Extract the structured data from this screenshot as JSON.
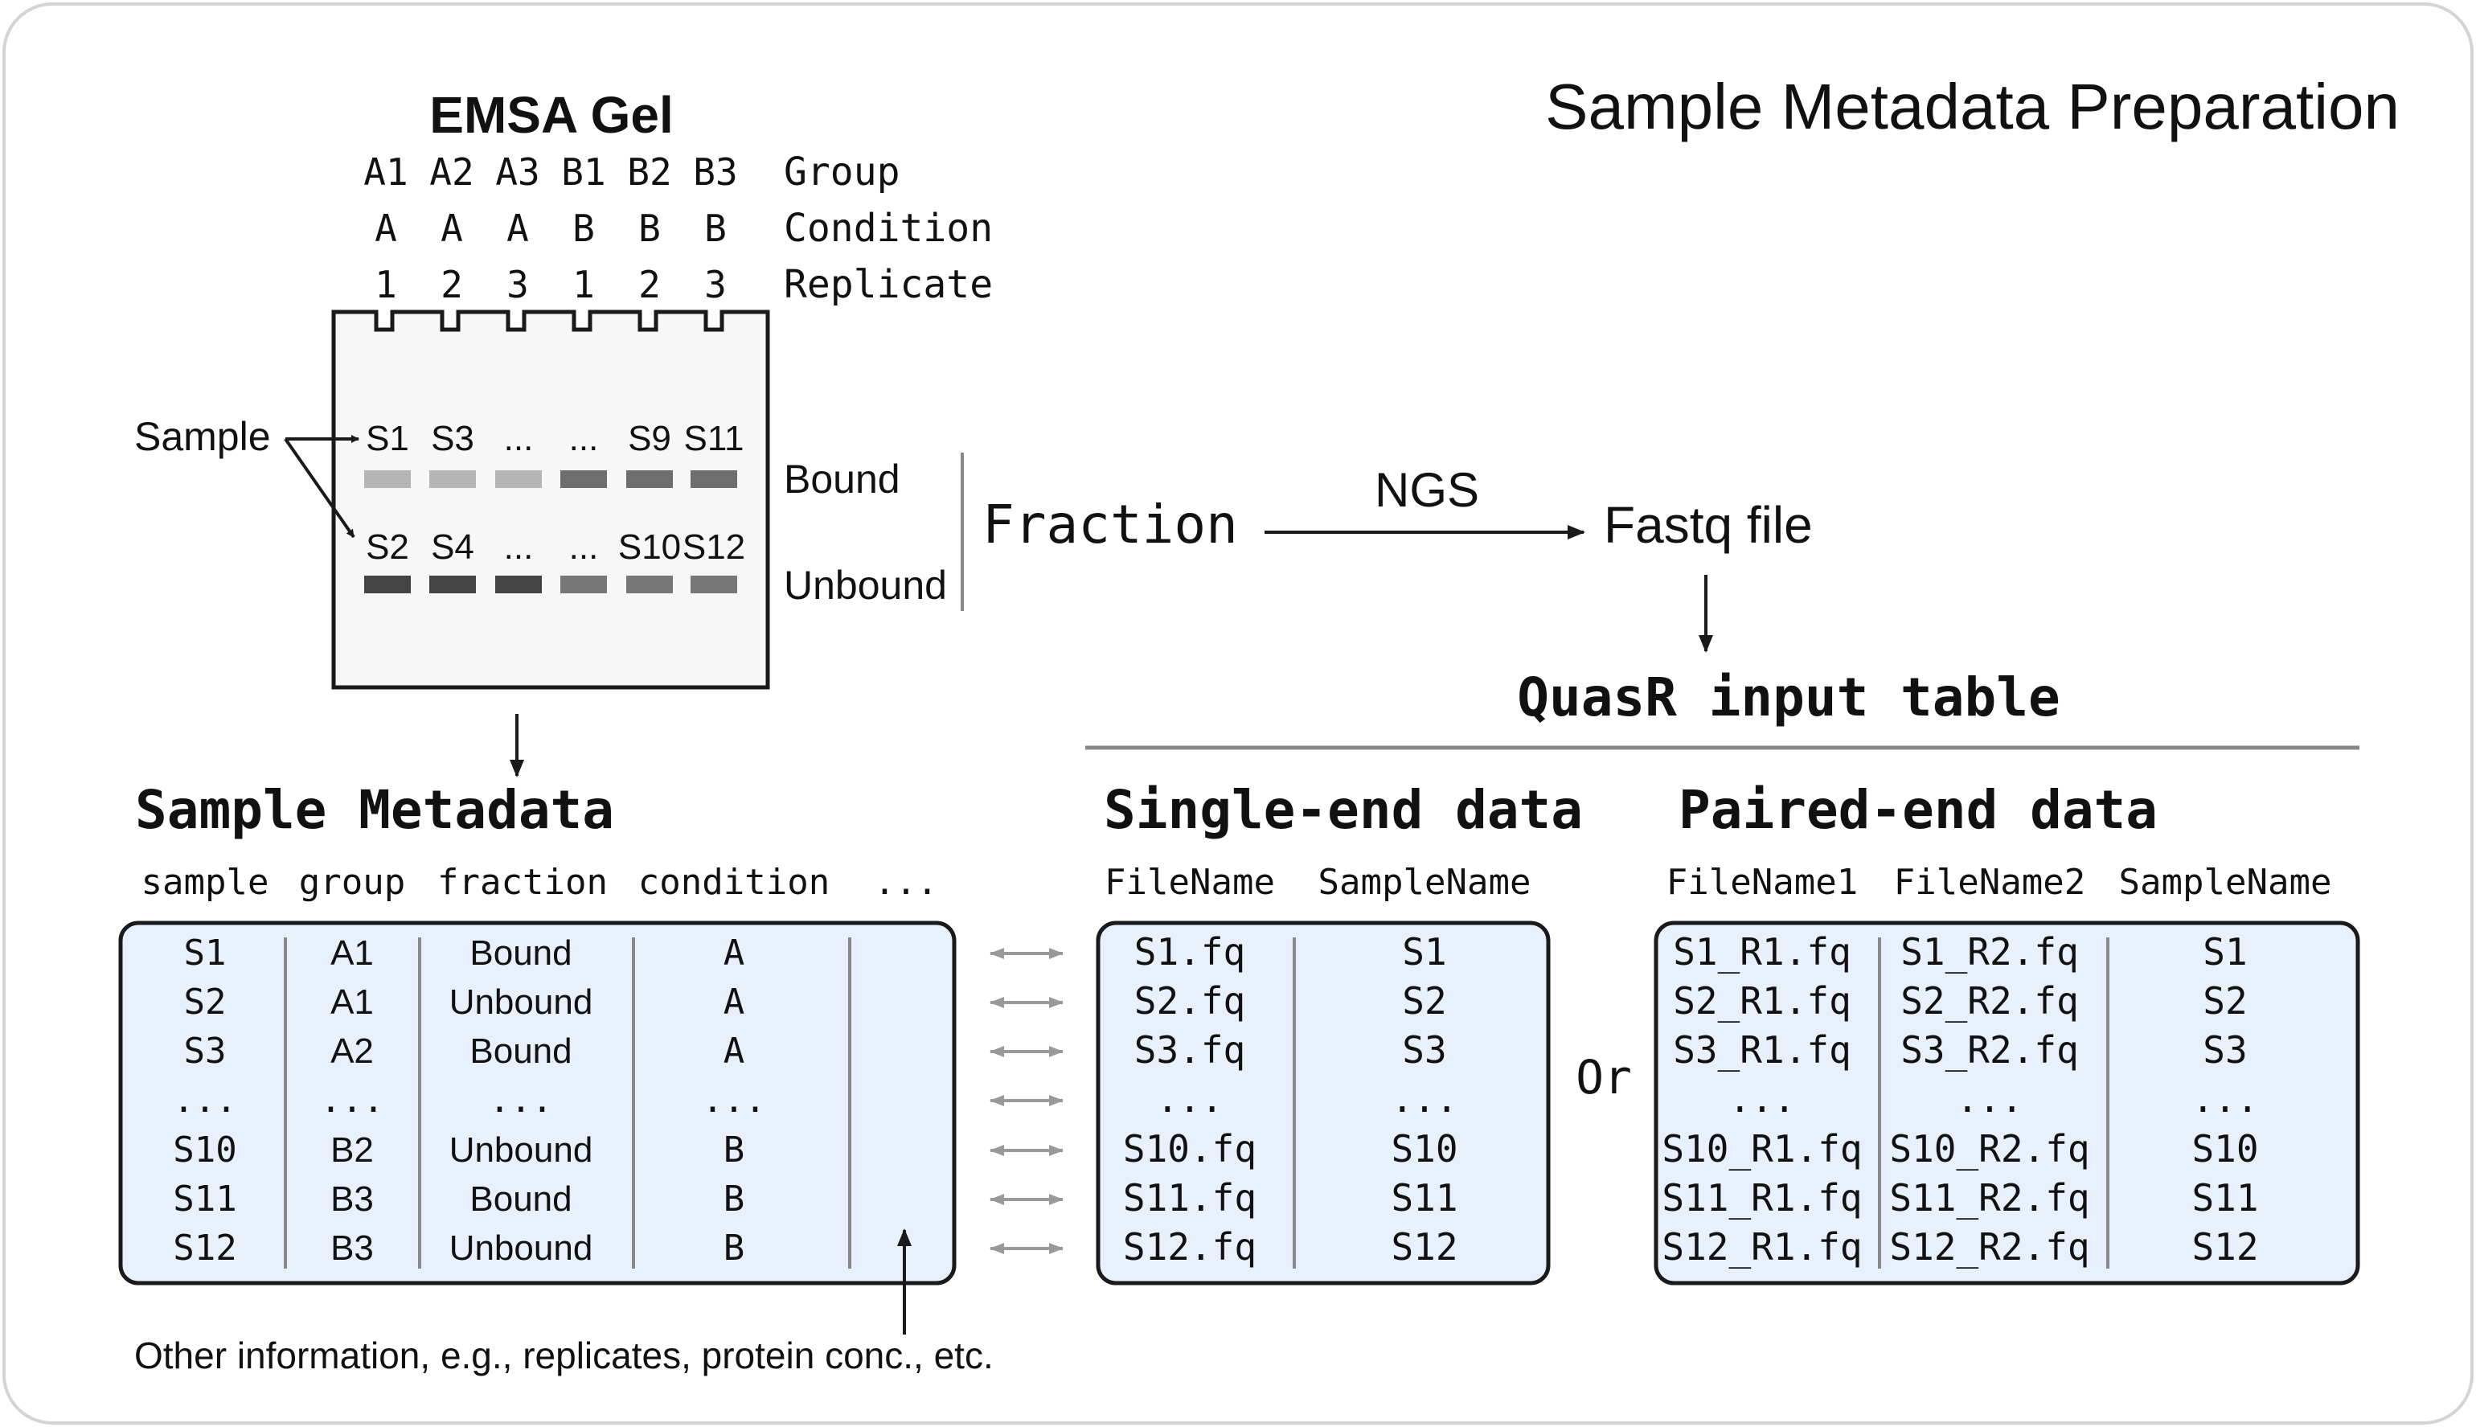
{
  "title": "Sample Metadata Preparation",
  "gel": {
    "title": "EMSA Gel",
    "lane_rows": [
      {
        "label": "Group",
        "values": [
          "A1",
          "A2",
          "A3",
          "B1",
          "B2",
          "B3"
        ]
      },
      {
        "label": "Condition",
        "values": [
          "A",
          "A",
          "A",
          "B",
          "B",
          "B"
        ]
      },
      {
        "label": "Replicate",
        "values": [
          "1",
          "2",
          "3",
          "1",
          "2",
          "3"
        ]
      }
    ],
    "sample_label": "Sample",
    "bound": {
      "label": "Bound",
      "samples": [
        "S1",
        "S3",
        "...",
        "...",
        "S9",
        "S11"
      ],
      "band_colors": [
        "#b5b5b5",
        "#b5b5b5",
        "#b5b5b5",
        "#6e6e6e",
        "#6e6e6e",
        "#6e6e6e"
      ]
    },
    "unbound": {
      "label": "Unbound",
      "samples": [
        "S2",
        "S4",
        "...",
        "...",
        "S10",
        "S12"
      ],
      "band_colors": [
        "#444444",
        "#444444",
        "#444444",
        "#777777",
        "#777777",
        "#777777"
      ]
    }
  },
  "flow": {
    "fraction": "Fraction",
    "ngs": "NGS",
    "fastq": "Fastq file",
    "quasr_title": "QuasR input table"
  },
  "metadata": {
    "title": "Sample Metadata",
    "headers": [
      "sample",
      "group",
      "fraction",
      "condition",
      "..."
    ],
    "rows": [
      [
        "S1",
        "A1",
        "Bound",
        "A",
        ""
      ],
      [
        "S2",
        "A1",
        "Unbound",
        "A",
        ""
      ],
      [
        "S3",
        "A2",
        "Bound",
        "A",
        ""
      ],
      [
        "...",
        "...",
        "...",
        "...",
        ""
      ],
      [
        "S10",
        "B2",
        "Unbound",
        "B",
        ""
      ],
      [
        "S11",
        "B3",
        "Bound",
        "B",
        ""
      ],
      [
        "S12",
        "B3",
        "Unbound",
        "B",
        ""
      ]
    ],
    "note": "Other information, e.g., replicates, protein conc., etc."
  },
  "single_end": {
    "title": "Single-end data",
    "headers": [
      "FileName",
      "SampleName"
    ],
    "rows": [
      [
        "S1.fq",
        "S1"
      ],
      [
        "S2.fq",
        "S2"
      ],
      [
        "S3.fq",
        "S3"
      ],
      [
        "...",
        "..."
      ],
      [
        "S10.fq",
        "S10"
      ],
      [
        "S11.fq",
        "S11"
      ],
      [
        "S12.fq",
        "S12"
      ]
    ]
  },
  "or_label": "Or",
  "paired_end": {
    "title": "Paired-end data",
    "headers": [
      "FileName1",
      "FileName2",
      "SampleName"
    ],
    "rows": [
      [
        "S1_R1.fq",
        "S1_R2.fq",
        "S1"
      ],
      [
        "S2_R1.fq",
        "S2_R2.fq",
        "S2"
      ],
      [
        "S3_R1.fq",
        "S3_R2.fq",
        "S3"
      ],
      [
        "...",
        "...",
        "..."
      ],
      [
        "S10_R1.fq",
        "S10_R2.fq",
        "S10"
      ],
      [
        "S11_R1.fq",
        "S11_R2.fq",
        "S11"
      ],
      [
        "S12_R1.fq",
        "S12_R2.fq",
        "S12"
      ]
    ]
  },
  "colors": {
    "table_fill": "#e8f1fb",
    "outline": "#1a1a1a",
    "gel_fill": "#f7f7f7",
    "separator": "#888888",
    "double_arrow": "#999999"
  }
}
